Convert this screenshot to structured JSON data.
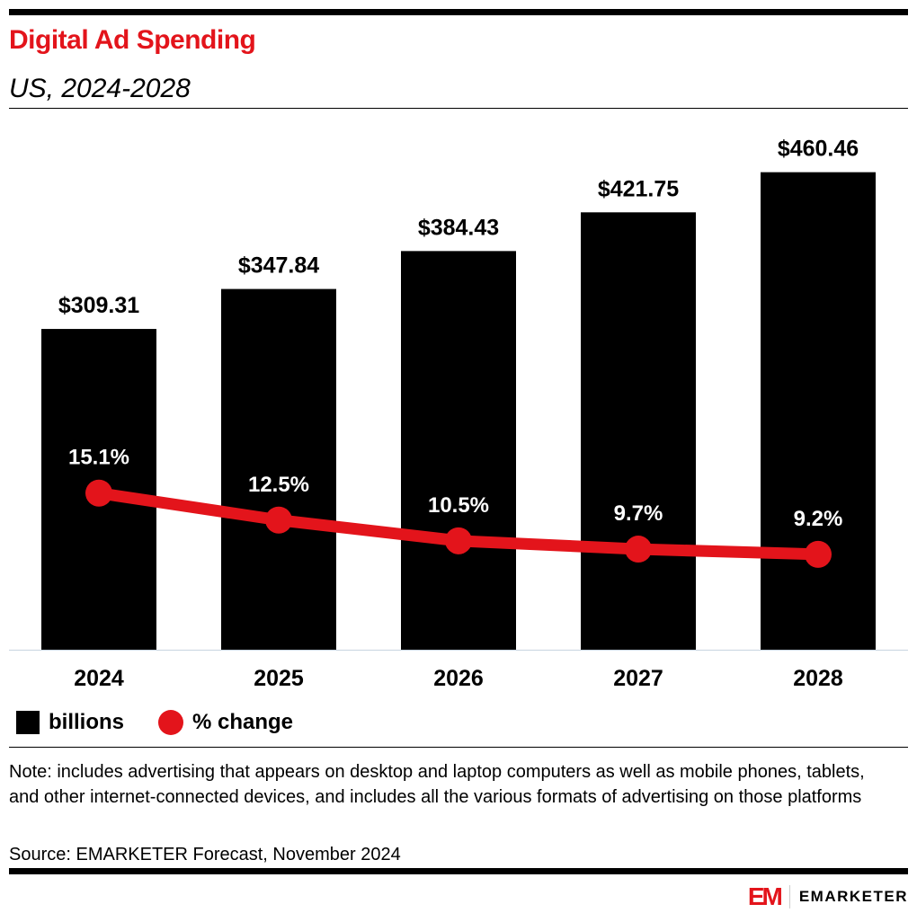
{
  "title": "Digital Ad Spending",
  "subtitle": "US, 2024-2028",
  "chart_data": {
    "type": "bar+line",
    "categories": [
      "2024",
      "2025",
      "2026",
      "2027",
      "2028"
    ],
    "series": [
      {
        "name": "billions",
        "type": "bar",
        "values": [
          309.31,
          347.84,
          384.43,
          421.75,
          460.46
        ],
        "labels": [
          "$309.31",
          "$347.84",
          "$384.43",
          "$421.75",
          "$460.46"
        ],
        "color": "#000000",
        "ylim": [
          0,
          500
        ]
      },
      {
        "name": "% change",
        "type": "line",
        "values": [
          15.1,
          12.5,
          10.5,
          9.7,
          9.2
        ],
        "labels": [
          "15.1%",
          "12.5%",
          "10.5%",
          "9.7%",
          "9.2%"
        ],
        "color": "#e3141b",
        "ylim": [
          0,
          50
        ]
      }
    ],
    "grid": false,
    "legend": "bottom-left"
  },
  "note": "Note: includes advertising that appears on desktop and laptop computers as well as mobile phones, tablets, and other internet-connected devices, and includes all the various formats of advertising on those platforms",
  "source": "Source: EMARKETER Forecast, November 2024",
  "logo": {
    "mark": "EM",
    "word": "EMARKETER"
  }
}
